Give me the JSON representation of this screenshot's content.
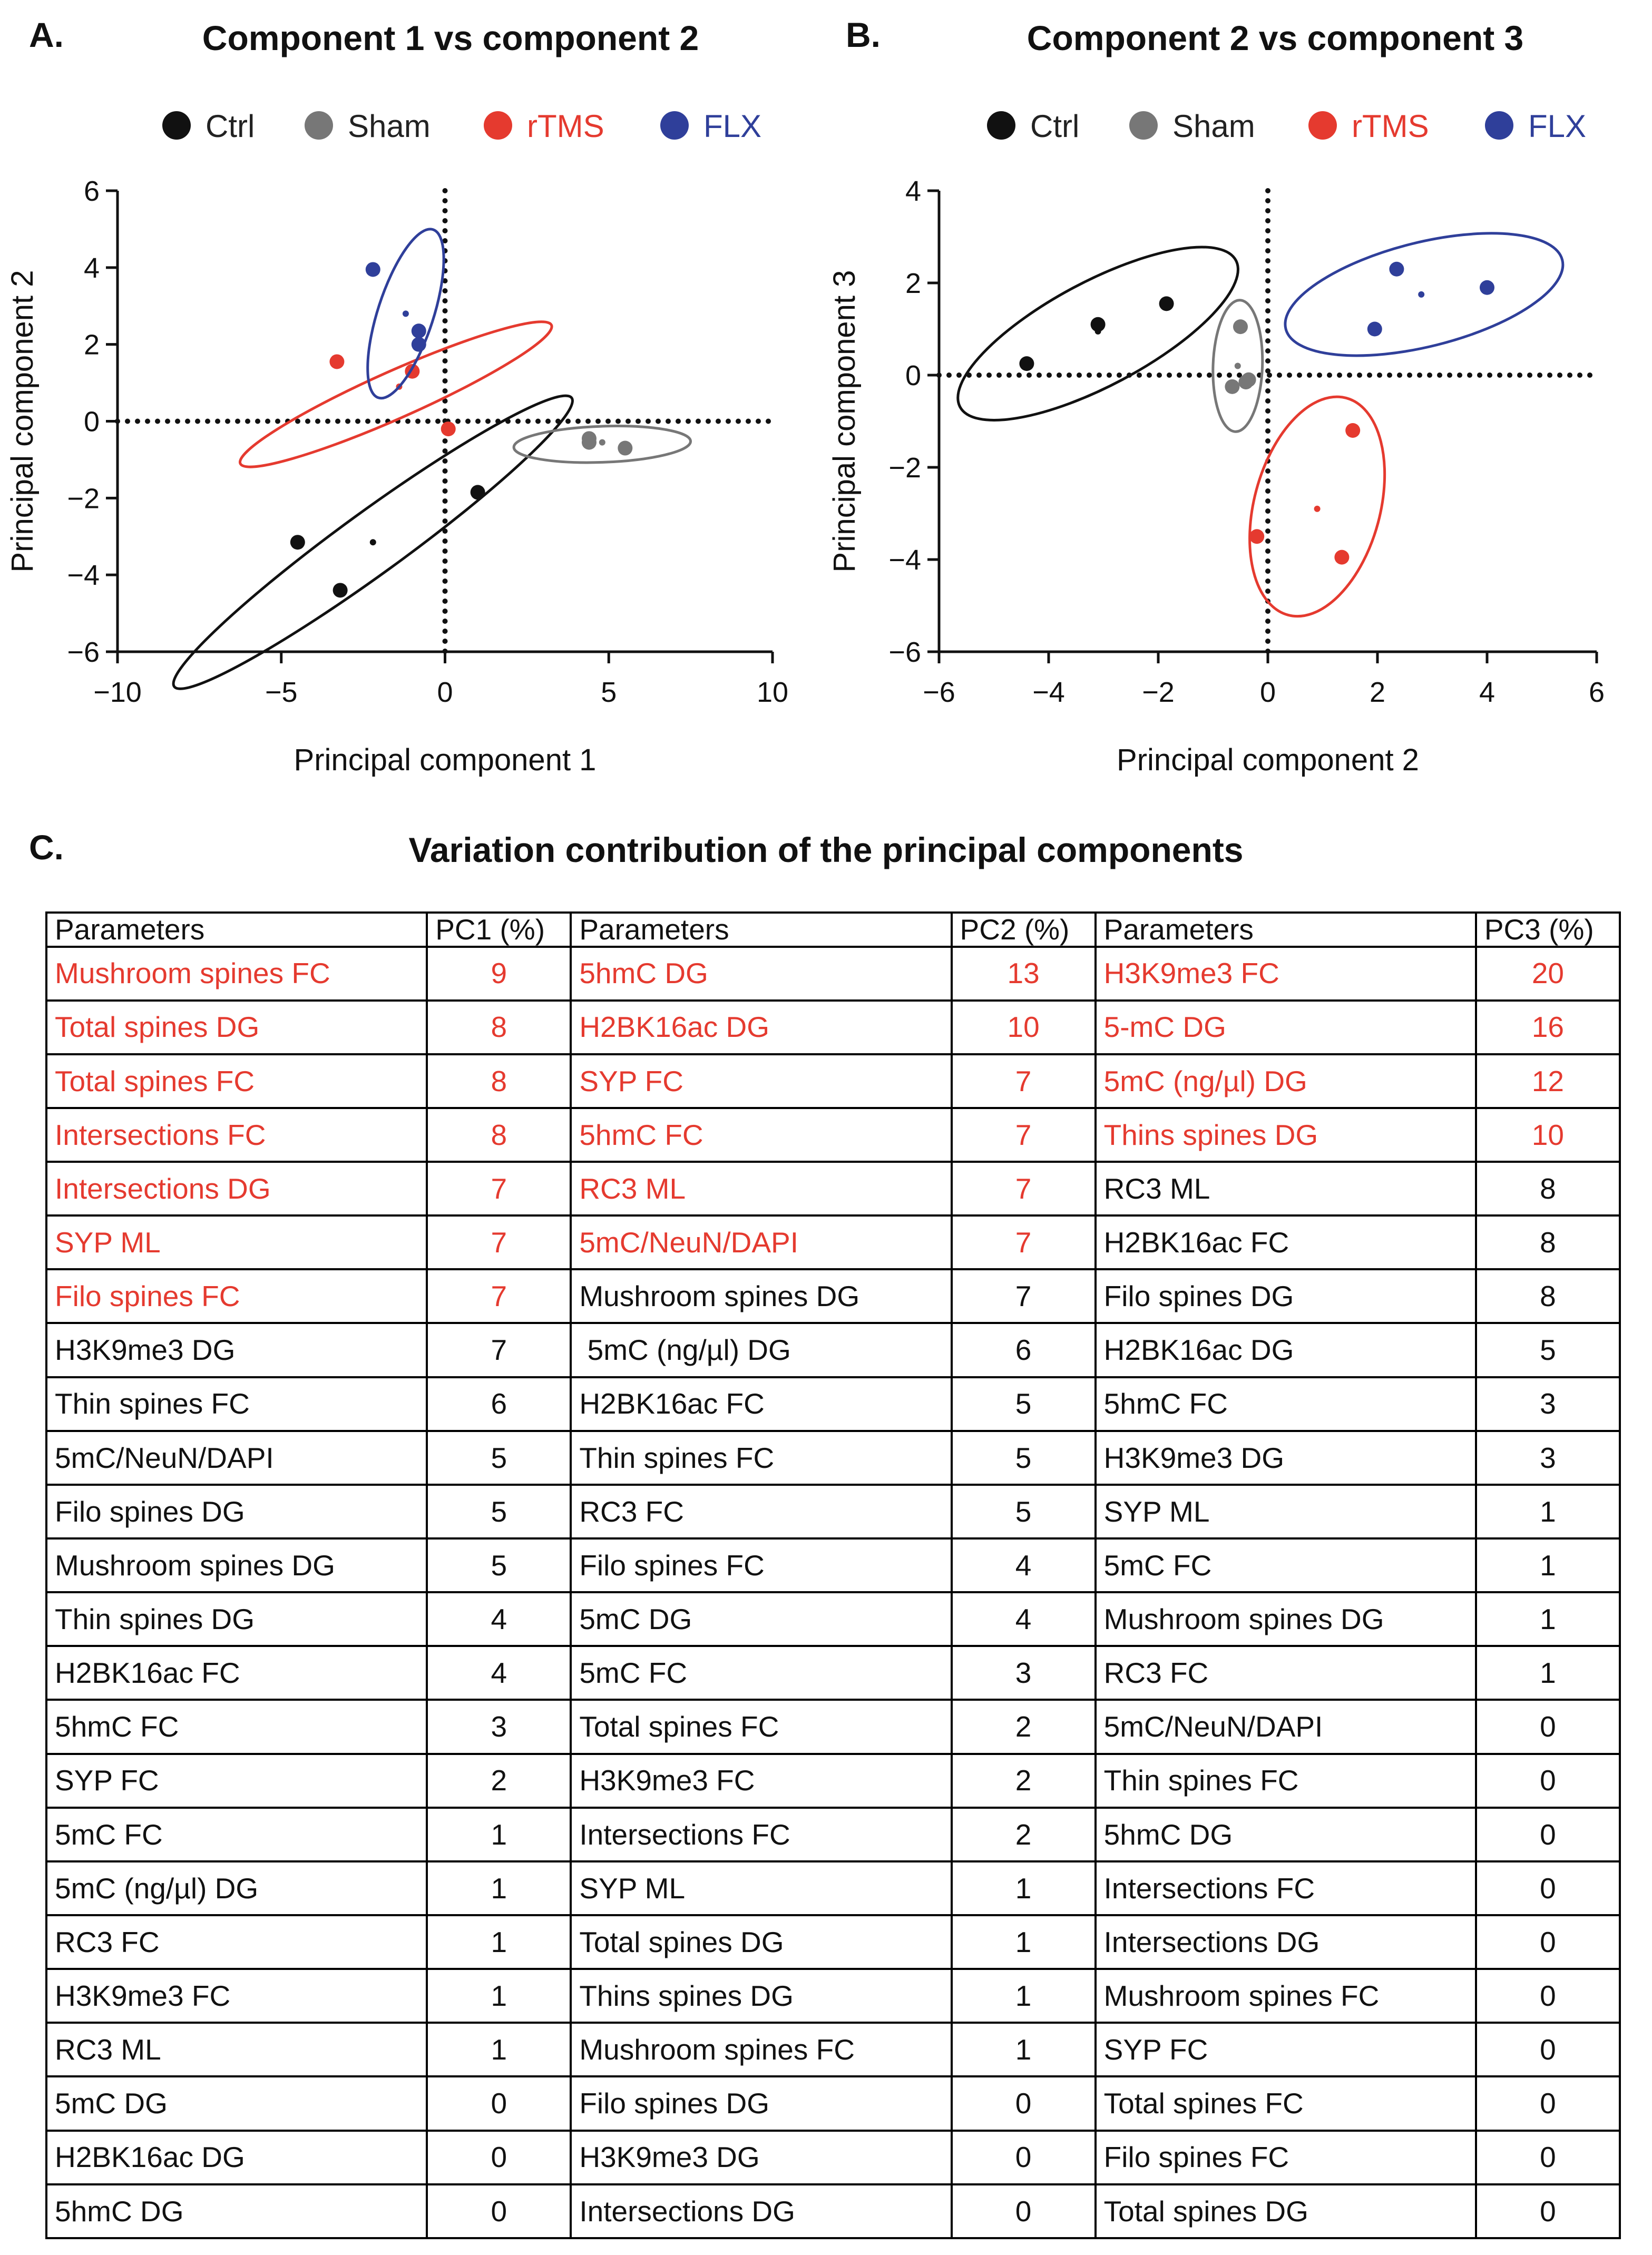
{
  "colors": {
    "ctrl": "#111111",
    "sham": "#777777",
    "rtms": "#e53a2f",
    "flx": "#2f3f9a",
    "highlight": "#e53a2f"
  },
  "panels": {
    "a_letter": "A.",
    "b_letter": "B.",
    "c_letter": "C."
  },
  "chart_data": [
    {
      "type": "scatter",
      "title": "Component 1 vs component 2",
      "xlabel": "Principal component 1",
      "ylabel": "Principal component 2",
      "xlim": [
        -10,
        10
      ],
      "ylim": [
        -6,
        6
      ],
      "xticks": [
        -10,
        -5,
        0,
        5,
        10
      ],
      "yticks": [
        -6,
        -4,
        -2,
        0,
        2,
        4,
        6
      ],
      "xtick_labels": [
        "−10",
        "−5",
        "0",
        "5",
        "10"
      ],
      "ytick_labels": [
        "−6",
        "−4",
        "−2",
        "0",
        "2",
        "4",
        "6"
      ],
      "reference_lines": {
        "x": 0,
        "y": 0,
        "style": "dotted"
      },
      "legend": [
        "Ctrl",
        "Sham",
        "rTMS",
        "FLX"
      ],
      "legend_position": "top",
      "series": [
        {
          "name": "Ctrl",
          "color_key": "ctrl",
          "points": [
            [
              -4.5,
              -3.15
            ],
            [
              -3.2,
              -4.4
            ],
            [
              1.0,
              -1.85
            ]
          ],
          "centroid": [
            -2.2,
            -3.15
          ],
          "ellipse": {
            "center": [
              -2.2,
              -3.15
            ],
            "rx": 7.5,
            "ry": 0.95,
            "rotation_deg": -36
          }
        },
        {
          "name": "Sham",
          "color_key": "sham",
          "points": [
            [
              4.4,
              -0.45
            ],
            [
              4.4,
              -0.55
            ],
            [
              5.5,
              -0.7
            ]
          ],
          "centroid": [
            4.8,
            -0.55
          ],
          "ellipse": {
            "center": [
              4.8,
              -0.6
            ],
            "rx": 2.7,
            "ry": 0.55,
            "rotation_deg": -2
          }
        },
        {
          "name": "rTMS",
          "color_key": "rtms",
          "points": [
            [
              -3.3,
              1.55
            ],
            [
              -1.0,
              1.3
            ],
            [
              0.1,
              -0.2
            ]
          ],
          "centroid": [
            -1.4,
            0.9
          ],
          "ellipse": {
            "center": [
              -1.5,
              0.7
            ],
            "rx": 5.2,
            "ry": 0.72,
            "rotation_deg": -24
          }
        },
        {
          "name": "FLX",
          "color_key": "flx",
          "points": [
            [
              -2.2,
              3.95
            ],
            [
              -0.8,
              2.35
            ],
            [
              -0.8,
              2.0
            ]
          ],
          "centroid": [
            -1.2,
            2.8
          ],
          "ellipse": {
            "center": [
              -1.2,
              2.8
            ],
            "rx": 2.7,
            "ry": 0.85,
            "rotation_deg": -72
          }
        }
      ]
    },
    {
      "type": "scatter",
      "title": "Component 2 vs component 3",
      "xlabel": "Principal component 2",
      "ylabel": "Principal component 3",
      "xlim": [
        -6,
        6
      ],
      "ylim": [
        -6,
        4
      ],
      "xticks": [
        -6,
        -4,
        -2,
        0,
        2,
        4,
        6
      ],
      "yticks": [
        -6,
        -4,
        -2,
        0,
        2,
        4
      ],
      "xtick_labels": [
        "−6",
        "−4",
        "−2",
        "0",
        "2",
        "4",
        "6"
      ],
      "ytick_labels": [
        "−6",
        "−4",
        "−2",
        "0",
        "2",
        "4"
      ],
      "reference_lines": {
        "x": 0,
        "y": 0,
        "style": "dotted"
      },
      "legend": [
        "Ctrl",
        "Sham",
        "rTMS",
        "FLX"
      ],
      "legend_position": "top",
      "series": [
        {
          "name": "Ctrl",
          "color_key": "ctrl",
          "points": [
            [
              -4.4,
              0.25
            ],
            [
              -3.1,
              1.1
            ],
            [
              -1.85,
              1.55
            ]
          ],
          "centroid": [
            -3.1,
            0.95
          ],
          "ellipse": {
            "center": [
              -3.1,
              0.9
            ],
            "rx": 2.85,
            "ry": 0.95,
            "rotation_deg": -28
          }
        },
        {
          "name": "Sham",
          "color_key": "sham",
          "points": [
            [
              -0.5,
              1.05
            ],
            [
              -0.65,
              -0.25
            ],
            [
              -0.4,
              -0.15
            ],
            [
              -0.35,
              -0.1
            ]
          ],
          "centroid": [
            -0.55,
            0.2
          ],
          "ellipse": {
            "center": [
              -0.55,
              0.2
            ],
            "rx": 1.2,
            "ry": 0.45,
            "rotation_deg": -88
          }
        },
        {
          "name": "rTMS",
          "color_key": "rtms",
          "points": [
            [
              1.55,
              -1.2
            ],
            [
              -0.2,
              -3.5
            ],
            [
              1.35,
              -3.95
            ]
          ],
          "centroid": [
            0.9,
            -2.9
          ],
          "ellipse": {
            "center": [
              0.9,
              -2.85
            ],
            "rx": 2.05,
            "ry": 1.15,
            "rotation_deg": -75
          }
        },
        {
          "name": "FLX",
          "color_key": "flx",
          "points": [
            [
              2.35,
              2.3
            ],
            [
              1.95,
              1.0
            ],
            [
              4.0,
              1.9
            ]
          ],
          "centroid": [
            2.8,
            1.75
          ],
          "ellipse": {
            "center": [
              2.85,
              1.75
            ],
            "rx": 2.6,
            "ry": 0.95,
            "rotation_deg": -14
          }
        }
      ]
    },
    {
      "type": "table",
      "title": "Variation contribution of the principal components",
      "columns": [
        {
          "param_header": "Parameters",
          "value_header": "PC1  (%)",
          "rows": [
            {
              "p": "Mushroom spines FC",
              "v": "9",
              "hl": true
            },
            {
              "p": "Total spines DG",
              "v": "8",
              "hl": true
            },
            {
              "p": "Total spines FC",
              "v": "8",
              "hl": true
            },
            {
              "p": "Intersections FC",
              "v": "8",
              "hl": true
            },
            {
              "p": "Intersections DG",
              "v": "7",
              "hl": true
            },
            {
              "p": "SYP ML",
              "v": "7",
              "hl": true
            },
            {
              "p": "Filo spines FC",
              "v": "7",
              "hl": true
            },
            {
              "p": "H3K9me3 DG",
              "v": "7",
              "hl": false
            },
            {
              "p": "Thin spines FC",
              "v": "6",
              "hl": false
            },
            {
              "p": "5mC/NeuN/DAPI",
              "v": "5",
              "hl": false
            },
            {
              "p": "Filo spines DG",
              "v": "5",
              "hl": false
            },
            {
              "p": "Mushroom spines DG",
              "v": "5",
              "hl": false
            },
            {
              "p": "Thin spines DG",
              "v": "4",
              "hl": false
            },
            {
              "p": "H2BK16ac FC",
              "v": "4",
              "hl": false
            },
            {
              "p": "5hmC FC",
              "v": "3",
              "hl": false
            },
            {
              "p": "SYP FC",
              "v": "2",
              "hl": false
            },
            {
              "p": "5mC FC",
              "v": "1",
              "hl": false
            },
            {
              "p": "5mC (ng/µl) DG",
              "v": "1",
              "hl": false
            },
            {
              "p": "RC3 FC",
              "v": "1",
              "hl": false
            },
            {
              "p": "H3K9me3 FC",
              "v": "1",
              "hl": false
            },
            {
              "p": "RC3 ML",
              "v": "1",
              "hl": false
            },
            {
              "p": "5mC DG",
              "v": "0",
              "hl": false
            },
            {
              "p": "H2BK16ac DG",
              "v": "0",
              "hl": false
            },
            {
              "p": "5hmC DG",
              "v": "0",
              "hl": false
            }
          ]
        },
        {
          "param_header": "Parameters",
          "value_header": "PC2  (%)",
          "rows": [
            {
              "p": "5hmC DG",
              "v": "13",
              "hl": true
            },
            {
              "p": "H2BK16ac DG",
              "v": "10",
              "hl": true
            },
            {
              "p": "SYP FC",
              "v": "7",
              "hl": true
            },
            {
              "p": "5hmC FC",
              "v": "7",
              "hl": true
            },
            {
              "p": "RC3 ML",
              "v": "7",
              "hl": true
            },
            {
              "p": "5mC/NeuN/DAPI",
              "v": "7",
              "hl": true
            },
            {
              "p": "Mushroom spines DG",
              "v": "7",
              "hl": false
            },
            {
              "p": " 5mC (ng/µl) DG",
              "v": "6",
              "hl": false
            },
            {
              "p": "H2BK16ac FC",
              "v": "5",
              "hl": false
            },
            {
              "p": "Thin spines FC",
              "v": "5",
              "hl": false
            },
            {
              "p": "RC3 FC",
              "v": "5",
              "hl": false
            },
            {
              "p": "Filo spines FC",
              "v": "4",
              "hl": false
            },
            {
              "p": "5mC DG",
              "v": "4",
              "hl": false
            },
            {
              "p": "5mC FC",
              "v": "3",
              "hl": false
            },
            {
              "p": "Total spines FC",
              "v": "2",
              "hl": false
            },
            {
              "p": "H3K9me3 FC",
              "v": "2",
              "hl": false
            },
            {
              "p": "Intersections FC",
              "v": "2",
              "hl": false
            },
            {
              "p": "SYP ML",
              "v": "1",
              "hl": false
            },
            {
              "p": "Total spines DG",
              "v": "1",
              "hl": false
            },
            {
              "p": "Thins spines DG",
              "v": "1",
              "hl": false
            },
            {
              "p": "Mushroom spines FC",
              "v": "1",
              "hl": false
            },
            {
              "p": "Filo spines DG",
              "v": "0",
              "hl": false
            },
            {
              "p": "H3K9me3 DG",
              "v": "0",
              "hl": false
            },
            {
              "p": "Intersections DG",
              "v": "0",
              "hl": false
            }
          ]
        },
        {
          "param_header": "Parameters",
          "value_header": "PC3  (%)",
          "rows": [
            {
              "p": "H3K9me3 FC",
              "v": "20",
              "hl": true
            },
            {
              "p": "5-mC DG",
              "v": "16",
              "hl": true
            },
            {
              "p": "5mC (ng/µl) DG",
              "v": "12",
              "hl": true
            },
            {
              "p": "Thins spines DG",
              "v": "10",
              "hl": true
            },
            {
              "p": "RC3 ML",
              "v": "8",
              "hl": false
            },
            {
              "p": "H2BK16ac FC",
              "v": "8",
              "hl": false
            },
            {
              "p": "Filo spines DG",
              "v": "8",
              "hl": false
            },
            {
              "p": "H2BK16ac DG",
              "v": "5",
              "hl": false
            },
            {
              "p": "5hmC FC",
              "v": "3",
              "hl": false
            },
            {
              "p": "H3K9me3 DG",
              "v": "3",
              "hl": false
            },
            {
              "p": "SYP ML",
              "v": "1",
              "hl": false
            },
            {
              "p": "5mC FC",
              "v": "1",
              "hl": false
            },
            {
              "p": "Mushroom spines DG",
              "v": "1",
              "hl": false
            },
            {
              "p": "RC3 FC",
              "v": "1",
              "hl": false
            },
            {
              "p": "5mC/NeuN/DAPI",
              "v": "0",
              "hl": false
            },
            {
              "p": "Thin spines FC",
              "v": "0",
              "hl": false
            },
            {
              "p": "5hmC DG",
              "v": "0",
              "hl": false
            },
            {
              "p": "Intersections FC",
              "v": "0",
              "hl": false
            },
            {
              "p": "Intersections DG",
              "v": "0",
              "hl": false
            },
            {
              "p": "Mushroom spines FC",
              "v": "0",
              "hl": false
            },
            {
              "p": "SYP FC",
              "v": "0",
              "hl": false
            },
            {
              "p": "Total spines FC",
              "v": "0",
              "hl": false
            },
            {
              "p": "Filo spines FC",
              "v": "0",
              "hl": false
            },
            {
              "p": "Total spines DG",
              "v": "0",
              "hl": false
            }
          ]
        }
      ]
    }
  ]
}
